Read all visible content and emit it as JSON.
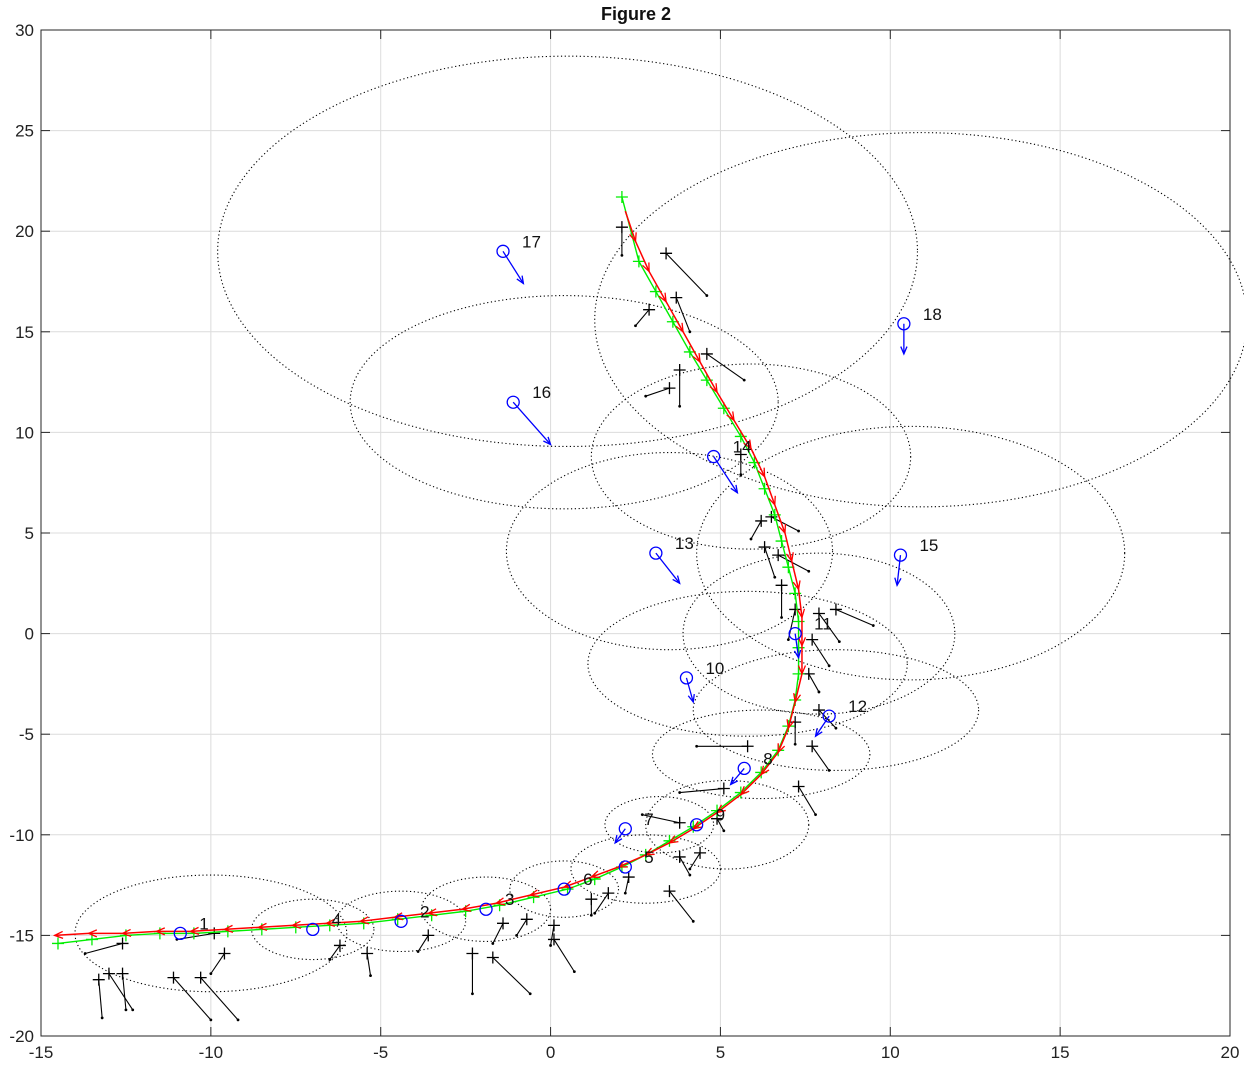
{
  "chart_data": {
    "type": "scatter",
    "title": "Figure 2",
    "xlabel": "",
    "ylabel": "",
    "xlim": [
      -15,
      20
    ],
    "ylim": [
      -20,
      30
    ],
    "grid": true,
    "x_ticks": [
      "-15",
      "-10",
      "-5",
      "0",
      "5",
      "10",
      "15",
      "20"
    ],
    "y_ticks": [
      "-20",
      "-15",
      "-10",
      "-5",
      "0",
      "5",
      "10",
      "15",
      "20",
      "25",
      "30"
    ],
    "colors": {
      "true_path": "#00ee00",
      "estimated_path": "#ff0000",
      "landmarks": "#0000ff",
      "measurements": "#000000",
      "uncertainty": "#000000"
    },
    "landmarks": [
      {
        "label": "1",
        "x": -10.9,
        "y": -14.9,
        "dx": 0.0,
        "dy": 0.0
      },
      {
        "label": "2",
        "x": -4.4,
        "y": -14.3,
        "dx": 0.0,
        "dy": 0.0
      },
      {
        "label": "3",
        "x": -1.9,
        "y": -13.7,
        "dx": 0.0,
        "dy": 0.0
      },
      {
        "label": "4",
        "x": -7.0,
        "y": -14.7,
        "dx": 0.0,
        "dy": 0.0
      },
      {
        "label": "6",
        "x": 0.4,
        "y": -12.7,
        "dx": 0.0,
        "dy": 0.0
      },
      {
        "label": "5",
        "x": 2.2,
        "y": -11.6,
        "dx": 0.0,
        "dy": 0.0
      },
      {
        "label": "7",
        "x": 2.2,
        "y": -9.7,
        "dx": -0.3,
        "dy": -0.7
      },
      {
        "label": "9",
        "x": 4.3,
        "y": -9.5,
        "dx": 0.0,
        "dy": 0.0
      },
      {
        "label": "8",
        "x": 5.7,
        "y": -6.7,
        "dx": -0.4,
        "dy": -0.8
      },
      {
        "label": "12",
        "x": 8.2,
        "y": -4.1,
        "dx": -0.4,
        "dy": -1.0
      },
      {
        "label": "10",
        "x": 4.0,
        "y": -2.2,
        "dx": 0.2,
        "dy": -1.2
      },
      {
        "label": "11",
        "x": 7.2,
        "y": -0.0,
        "dx": 0.1,
        "dy": -1.2
      },
      {
        "label": "15",
        "x": 10.3,
        "y": 3.9,
        "dx": -0.1,
        "dy": -1.5
      },
      {
        "label": "13",
        "x": 3.1,
        "y": 4.0,
        "dx": 0.7,
        "dy": -1.5
      },
      {
        "label": "14",
        "x": 4.8,
        "y": 8.8,
        "dx": 0.7,
        "dy": -1.8
      },
      {
        "label": "16",
        "x": -1.1,
        "y": 11.5,
        "dx": 1.1,
        "dy": -2.1
      },
      {
        "label": "17",
        "x": -1.4,
        "y": 19.0,
        "dx": 0.6,
        "dy": -1.6
      },
      {
        "label": "18",
        "x": 10.4,
        "y": 15.4,
        "dx": 0.0,
        "dy": -1.5
      }
    ],
    "uncertainty_ellipses": [
      {
        "cx": -10.0,
        "cy": -14.9,
        "rx": 4.0,
        "ry": 2.9
      },
      {
        "cx": -7.0,
        "cy": -14.7,
        "rx": 1.8,
        "ry": 1.5
      },
      {
        "cx": -4.4,
        "cy": -14.3,
        "rx": 1.9,
        "ry": 1.5
      },
      {
        "cx": -1.9,
        "cy": -13.7,
        "rx": 1.9,
        "ry": 1.6
      },
      {
        "cx": 0.4,
        "cy": -12.7,
        "rx": 1.6,
        "ry": 1.4
      },
      {
        "cx": 2.8,
        "cy": -11.7,
        "rx": 2.2,
        "ry": 1.7
      },
      {
        "cx": 3.2,
        "cy": -9.5,
        "rx": 1.6,
        "ry": 1.4
      },
      {
        "cx": 5.2,
        "cy": -9.5,
        "rx": 2.4,
        "ry": 2.2
      },
      {
        "cx": 6.2,
        "cy": -6.0,
        "rx": 3.2,
        "ry": 2.2
      },
      {
        "cx": 8.4,
        "cy": -3.8,
        "rx": 4.2,
        "ry": 3.0
      },
      {
        "cx": 5.8,
        "cy": -1.5,
        "rx": 4.7,
        "ry": 3.6
      },
      {
        "cx": 7.9,
        "cy": 0.0,
        "rx": 4.0,
        "ry": 4.0
      },
      {
        "cx": 10.6,
        "cy": 4.0,
        "rx": 6.3,
        "ry": 6.3
      },
      {
        "cx": 3.5,
        "cy": 4.1,
        "rx": 4.8,
        "ry": 4.9
      },
      {
        "cx": 5.9,
        "cy": 8.8,
        "rx": 4.7,
        "ry": 4.6
      },
      {
        "cx": 0.4,
        "cy": 11.5,
        "rx": 6.3,
        "ry": 5.3
      },
      {
        "cx": 0.5,
        "cy": 19.0,
        "rx": 10.3,
        "ry": 9.7
      },
      {
        "cx": 10.9,
        "cy": 15.6,
        "rx": 9.6,
        "ry": 9.3
      }
    ],
    "true_path": {
      "x": [
        -14.5,
        -13.5,
        -12.5,
        -11.5,
        -10.5,
        -9.5,
        -8.5,
        -7.5,
        -6.5,
        -5.5,
        -4.5,
        -3.5,
        -2.5,
        -1.5,
        -0.5,
        0.5,
        1.3,
        2.1,
        2.8,
        3.5,
        4.2,
        4.9,
        5.6,
        6.2,
        6.7,
        7.0,
        7.2,
        7.3,
        7.3,
        7.3,
        7.2,
        7.0,
        6.8,
        6.6,
        6.3,
        6.0,
        5.6,
        5.1,
        4.6,
        4.1,
        3.6,
        3.1,
        2.6,
        2.1
      ],
      "y": [
        -15.4,
        -15.2,
        -15.0,
        -14.9,
        -14.9,
        -14.8,
        -14.7,
        -14.6,
        -14.5,
        -14.4,
        -14.2,
        -14.0,
        -13.8,
        -13.5,
        -13.1,
        -12.7,
        -12.2,
        -11.6,
        -11.0,
        -10.3,
        -9.6,
        -8.8,
        -7.9,
        -6.9,
        -5.8,
        -4.6,
        -3.3,
        -2.0,
        -0.7,
        0.6,
        2.0,
        3.3,
        4.6,
        5.9,
        7.2,
        8.5,
        9.8,
        11.2,
        12.6,
        14.0,
        15.5,
        17.0,
        18.5,
        21.7
      ]
    },
    "estimated_path": {
      "x": [
        -14.6,
        -13.6,
        -12.6,
        -11.6,
        -10.6,
        -9.6,
        -8.6,
        -7.6,
        -6.6,
        -5.6,
        -4.6,
        -3.6,
        -2.6,
        -1.6,
        -0.6,
        0.4,
        1.2,
        2.0,
        2.8,
        3.5,
        4.2,
        4.9,
        5.6,
        6.2,
        6.7,
        7.0,
        7.2,
        7.4,
        7.4,
        7.4,
        7.3,
        7.1,
        6.9,
        6.6,
        6.3,
        5.9,
        5.4,
        4.9,
        4.4,
        3.9,
        3.4,
        2.9,
        2.5,
        2.2
      ],
      "y": [
        -15.0,
        -14.9,
        -14.9,
        -14.8,
        -14.8,
        -14.7,
        -14.6,
        -14.5,
        -14.4,
        -14.3,
        -14.1,
        -13.9,
        -13.7,
        -13.4,
        -13.0,
        -12.6,
        -12.1,
        -11.6,
        -11.0,
        -10.4,
        -9.7,
        -8.9,
        -8.0,
        -7.0,
        -5.9,
        -4.7,
        -3.4,
        -2.0,
        -0.6,
        0.8,
        2.2,
        3.6,
        5.0,
        6.4,
        7.8,
        9.2,
        10.6,
        12.0,
        13.5,
        15.0,
        16.5,
        18.0,
        19.5,
        21.0
      ]
    },
    "measurements": [
      {
        "x": -13.3,
        "y": -17.2,
        "dx": 0.1,
        "dy": -1.9
      },
      {
        "x": -13.0,
        "y": -16.9,
        "dx": 0.7,
        "dy": -1.8
      },
      {
        "x": -12.6,
        "y": -16.9,
        "dx": 0.1,
        "dy": -1.8
      },
      {
        "x": -11.1,
        "y": -17.1,
        "dx": 1.1,
        "dy": -2.1
      },
      {
        "x": -10.3,
        "y": -17.1,
        "dx": 1.1,
        "dy": -2.1
      },
      {
        "x": -9.6,
        "y": -15.9,
        "dx": -0.4,
        "dy": -1.0
      },
      {
        "x": -12.6,
        "y": -15.4,
        "dx": -1.1,
        "dy": -0.5
      },
      {
        "x": -9.9,
        "y": -14.9,
        "dx": -1.1,
        "dy": -0.3
      },
      {
        "x": -6.2,
        "y": -15.5,
        "dx": -0.3,
        "dy": -0.7
      },
      {
        "x": -5.4,
        "y": -15.9,
        "dx": 0.1,
        "dy": -1.1
      },
      {
        "x": -3.6,
        "y": -15.0,
        "dx": -0.3,
        "dy": -0.8
      },
      {
        "x": -2.3,
        "y": -15.9,
        "dx": 0.0,
        "dy": -2.0
      },
      {
        "x": -1.7,
        "y": -16.1,
        "dx": 1.1,
        "dy": -1.8
      },
      {
        "x": -1.4,
        "y": -14.4,
        "dx": -0.3,
        "dy": -1.0
      },
      {
        "x": 0.1,
        "y": -15.2,
        "dx": 0.6,
        "dy": -1.6
      },
      {
        "x": 0.1,
        "y": -14.5,
        "dx": -0.1,
        "dy": -1.0
      },
      {
        "x": -0.7,
        "y": -14.2,
        "dx": -0.3,
        "dy": -0.8
      },
      {
        "x": 1.2,
        "y": -13.2,
        "dx": 0.0,
        "dy": -0.8
      },
      {
        "x": 1.7,
        "y": -12.9,
        "dx": -0.4,
        "dy": -1.0
      },
      {
        "x": 2.3,
        "y": -12.1,
        "dx": -0.1,
        "dy": -0.8
      },
      {
        "x": 3.5,
        "y": -12.8,
        "dx": 0.7,
        "dy": -1.5
      },
      {
        "x": 3.8,
        "y": -11.1,
        "dx": 0.3,
        "dy": -0.9
      },
      {
        "x": 4.4,
        "y": -10.9,
        "dx": -0.3,
        "dy": -0.8
      },
      {
        "x": 3.8,
        "y": -9.4,
        "dx": -1.1,
        "dy": 0.4
      },
      {
        "x": 4.9,
        "y": -9.2,
        "dx": 0.2,
        "dy": -0.6
      },
      {
        "x": 5.1,
        "y": -7.7,
        "dx": -1.3,
        "dy": -0.2
      },
      {
        "x": 7.3,
        "y": -7.6,
        "dx": 0.5,
        "dy": -1.4
      },
      {
        "x": 5.8,
        "y": -5.6,
        "dx": -1.5,
        "dy": 0.0
      },
      {
        "x": 7.7,
        "y": -5.6,
        "dx": 0.5,
        "dy": -1.2
      },
      {
        "x": 7.2,
        "y": -4.4,
        "dx": 0.0,
        "dy": -1.1
      },
      {
        "x": 7.9,
        "y": -3.8,
        "dx": 0.5,
        "dy": -0.9
      },
      {
        "x": 7.6,
        "y": -2.0,
        "dx": 0.3,
        "dy": -0.9
      },
      {
        "x": 7.7,
        "y": -0.3,
        "dx": 0.5,
        "dy": -1.3
      },
      {
        "x": 7.9,
        "y": 1.0,
        "dx": 0.6,
        "dy": -1.4
      },
      {
        "x": 8.4,
        "y": 1.2,
        "dx": 1.1,
        "dy": -0.8
      },
      {
        "x": 7.2,
        "y": 1.2,
        "dx": -0.2,
        "dy": -1.5
      },
      {
        "x": 6.8,
        "y": 2.4,
        "dx": 0.0,
        "dy": -1.6
      },
      {
        "x": 6.7,
        "y": 3.9,
        "dx": 0.9,
        "dy": -0.8
      },
      {
        "x": 6.3,
        "y": 4.3,
        "dx": 0.3,
        "dy": -1.5
      },
      {
        "x": 6.2,
        "y": 5.6,
        "dx": -0.3,
        "dy": -0.9
      },
      {
        "x": 6.5,
        "y": 5.8,
        "dx": 0.8,
        "dy": -0.7
      },
      {
        "x": 5.6,
        "y": 8.9,
        "dx": 0.0,
        "dy": -1.0
      },
      {
        "x": 4.6,
        "y": 13.9,
        "dx": 1.1,
        "dy": -1.3
      },
      {
        "x": 3.8,
        "y": 13.1,
        "dx": 0.0,
        "dy": -1.8
      },
      {
        "x": 3.5,
        "y": 12.2,
        "dx": -0.7,
        "dy": -0.4
      },
      {
        "x": 2.9,
        "y": 16.1,
        "dx": -0.4,
        "dy": -0.8
      },
      {
        "x": 3.7,
        "y": 16.7,
        "dx": 0.4,
        "dy": -1.7
      },
      {
        "x": 3.4,
        "y": 18.9,
        "dx": 1.2,
        "dy": -2.1
      },
      {
        "x": 2.1,
        "y": 20.2,
        "dx": 0.0,
        "dy": -1.4
      }
    ]
  }
}
